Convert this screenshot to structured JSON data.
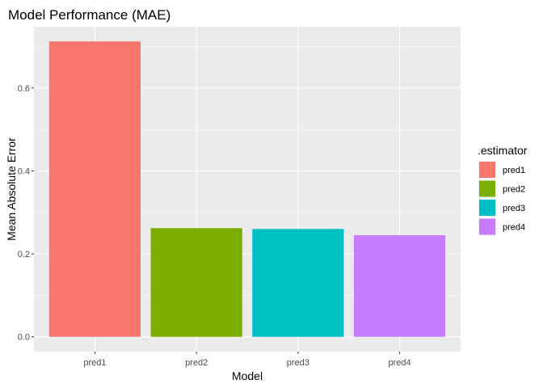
{
  "chart_data": {
    "type": "bar",
    "title": "Model Performance (MAE)",
    "xlabel": "Model",
    "ylabel": "Mean Absolute Error",
    "categories": [
      "pred1",
      "pred2",
      "pred3",
      "pred4"
    ],
    "values": [
      0.712,
      0.262,
      0.26,
      0.245
    ],
    "colors": [
      "#F8766D",
      "#7CAE00",
      "#00BFC4",
      "#C77CFF"
    ],
    "ylim": [
      -0.0356,
      0.7476
    ],
    "yticks": [
      0.0,
      0.2,
      0.4,
      0.6
    ],
    "ytick_labels": [
      "0.0",
      "0.2",
      "0.4",
      "0.6"
    ],
    "grid": true,
    "panel_background": "#EBEBEB",
    "legend": {
      "title": ".estimator",
      "position": "right",
      "entries": [
        "pred1",
        "pred2",
        "pred3",
        "pred4"
      ]
    }
  }
}
